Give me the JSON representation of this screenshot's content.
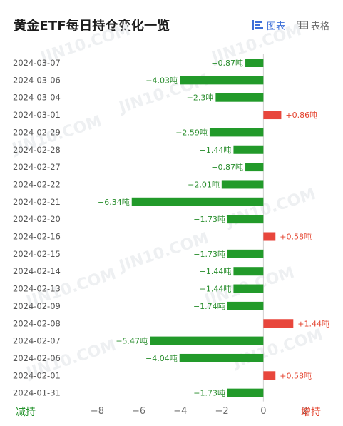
{
  "header": {
    "title": "黄金ETF每日持仓变化一览",
    "tab_chart_label": "图表",
    "tab_table_label": "表格"
  },
  "colors": {
    "negative": "#229a2a",
    "positive": "#e8463c",
    "negative_text": "#2a8e2e",
    "positive_text": "#e4432e",
    "active_tab": "#3d6fd8"
  },
  "chart_data": {
    "type": "bar",
    "orientation": "horizontal",
    "unit": "吨",
    "categories": [
      "2024-03-07",
      "2024-03-06",
      "2024-03-04",
      "2024-03-01",
      "2024-02-29",
      "2024-02-28",
      "2024-02-27",
      "2024-02-22",
      "2024-02-21",
      "2024-02-20",
      "2024-02-16",
      "2024-02-15",
      "2024-02-14",
      "2024-02-13",
      "2024-02-09",
      "2024-02-08",
      "2024-02-07",
      "2024-02-06",
      "2024-02-01",
      "2024-01-31"
    ],
    "values": [
      -0.87,
      -4.03,
      -2.3,
      0.86,
      -2.59,
      -1.44,
      -0.87,
      -2.01,
      -6.34,
      -1.73,
      0.58,
      -1.73,
      -1.44,
      -1.44,
      -1.74,
      1.44,
      -5.47,
      -4.04,
      0.58,
      -1.73
    ],
    "value_labels": [
      "−0.87吨",
      "−4.03吨",
      "−2.3吨",
      "+0.86吨",
      "−2.59吨",
      "−1.44吨",
      "−0.87吨",
      "−2.01吨",
      "−6.34吨",
      "−1.73吨",
      "+0.58吨",
      "−1.73吨",
      "−1.44吨",
      "−1.44吨",
      "−1.74吨",
      "+1.44吨",
      "−5.47吨",
      "−4.04吨",
      "+0.58吨",
      "−1.73吨"
    ],
    "x_ticks": [
      -8,
      -6,
      -4,
      -2,
      0,
      2
    ],
    "x_tick_labels": [
      "−8",
      "−6",
      "−4",
      "−2",
      "0",
      "2"
    ],
    "xlim": [
      -8.7,
      2.7
    ],
    "negative_label": "减持",
    "positive_label": "增持",
    "watermark": "JIN10.COM"
  }
}
